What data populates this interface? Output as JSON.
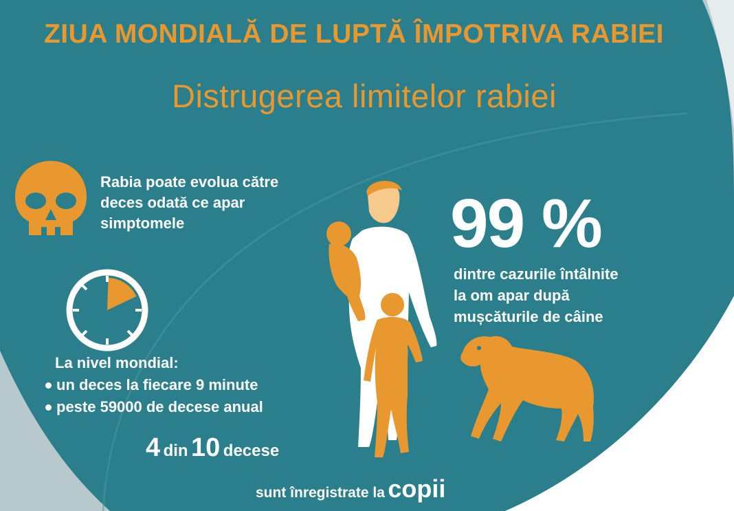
{
  "header": {
    "title": "ZIUA MONDIALĂ DE LUPTĂ ÎMPOTRIVA RABIEI",
    "subtitle": "Distrugerea limitelor rabiei"
  },
  "death_note": {
    "icon": "skull-icon",
    "lines": [
      "Rabia poate evolua către",
      "deces odată ce apar",
      "simptomele"
    ]
  },
  "global_stats": {
    "icon": "clock-icon",
    "heading": "La nivel mondial:",
    "bullets": [
      "un deces la fiecare 9 minute",
      "peste 59000 de decese anual"
    ]
  },
  "children_stat": {
    "num1": "4",
    "word1": "din",
    "num2": "10",
    "word2": "decese",
    "line2": "sunt înregistrate la",
    "emphasis": "copii"
  },
  "dog_bites": {
    "percent": "99 %",
    "lines": [
      "dintre cazurile întâlnite",
      "la om apar după",
      "mușcăturile de câine"
    ]
  },
  "illustration": {
    "figures": [
      "woman-silhouette",
      "child-silhouette",
      "baby-silhouette",
      "dog-silhouette"
    ]
  },
  "colors": {
    "teal": "#2b7f8c",
    "orange": "#e8982e",
    "grey_blue": "#b8c9cd",
    "white": "#ffffff"
  }
}
